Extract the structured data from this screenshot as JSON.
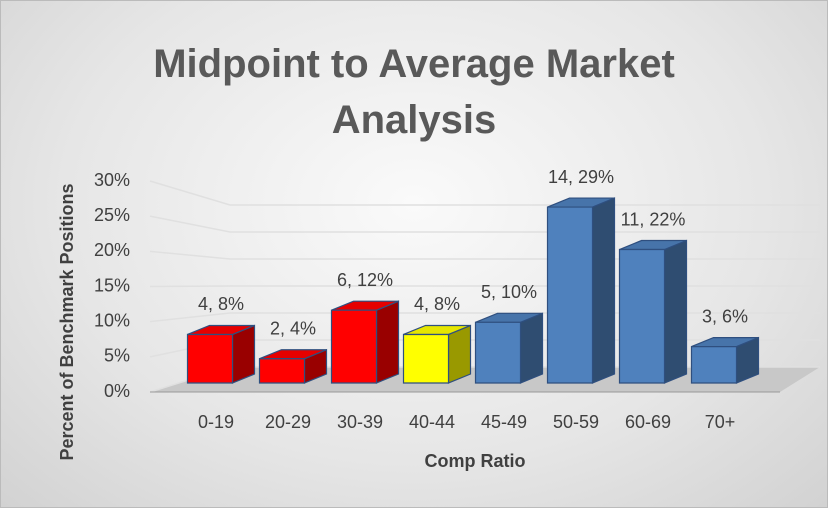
{
  "chart_data": {
    "type": "bar3d",
    "title": "Midpoint to Average Market Analysis",
    "x_label": "Comp Ratio",
    "y_label": "Percent of Benchmark Positions",
    "categories": [
      "0-19",
      "20-29",
      "30-39",
      "40-44",
      "45-49",
      "50-59",
      "60-69",
      "70+"
    ],
    "values": [
      8,
      4,
      12,
      8,
      10,
      29,
      22,
      6
    ],
    "value_labels": [
      "4, 8%",
      "2, 4%",
      "6, 12%",
      "4, 8%",
      "5, 10%",
      "14, 29%",
      "11, 22%",
      "3, 6%"
    ],
    "colors": [
      "#ff0000",
      "#ff0000",
      "#ff0000",
      "#ffff00",
      "#4f81bd",
      "#4f81bd",
      "#4f81bd",
      "#4f81bd"
    ],
    "ylim": [
      0,
      30
    ],
    "yticks": [
      {
        "value": 0,
        "label": "0%"
      },
      {
        "value": 5,
        "label": "5%"
      },
      {
        "value": 10,
        "label": "10%"
      },
      {
        "value": 15,
        "label": "15%"
      },
      {
        "value": 20,
        "label": "20%"
      },
      {
        "value": 25,
        "label": "25%"
      },
      {
        "value": 30,
        "label": "30%"
      }
    ],
    "grid": true
  }
}
